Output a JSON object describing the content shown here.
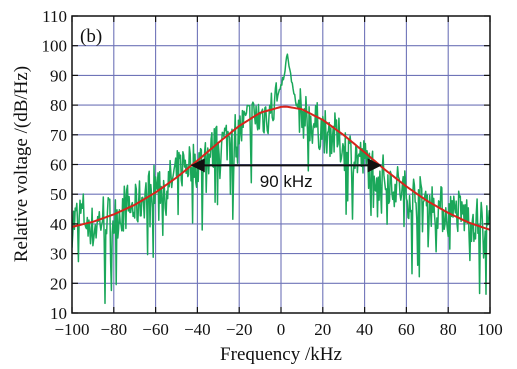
{
  "chart_data": {
    "type": "line",
    "panel_label": "(b)",
    "xlabel": "Frequency /kHz",
    "ylabel": "Relative voltage /(dB/Hz)",
    "xlim": [
      -100,
      100
    ],
    "ylim": [
      10,
      110
    ],
    "xticks": [
      "−100",
      "−80",
      "−60",
      "−40",
      "−20",
      "0",
      "20",
      "40",
      "60",
      "80",
      "100"
    ],
    "yticks": [
      "10",
      "20",
      "30",
      "40",
      "50",
      "60",
      "70",
      "80",
      "90",
      "100",
      "110"
    ],
    "grid": true,
    "colors": {
      "measured": "#1aa75a",
      "fit": "#d8231b",
      "grid": "#6f74b8",
      "arrow": "#111111"
    },
    "series": [
      {
        "style": "noisy",
        "x": [
          -100,
          -95,
          -90,
          -85,
          -80,
          -75,
          -70,
          -65,
          -60,
          -55,
          -50,
          -45,
          -40,
          -35,
          -30,
          -25,
          -20,
          -15,
          -10,
          -5,
          -2,
          0,
          2,
          3,
          4,
          6,
          8,
          10,
          15,
          20,
          25,
          30,
          35,
          40,
          45,
          50,
          55,
          60,
          65,
          70,
          75,
          80,
          85,
          90,
          95,
          100
        ],
        "y": [
          40,
          44,
          38,
          43,
          41,
          46,
          45,
          50,
          53,
          52,
          57,
          61,
          60,
          63,
          66,
          69,
          71,
          75,
          76,
          78,
          82,
          86,
          92,
          97,
          93,
          84,
          79,
          77,
          74,
          72,
          70,
          66,
          63,
          61,
          58,
          55,
          53,
          50,
          49,
          47,
          46,
          43,
          44,
          42,
          41,
          39
        ]
      },
      {
        "style": "smooth",
        "x": [
          -100,
          -90,
          -80,
          -70,
          -60,
          -50,
          -40,
          -30,
          -20,
          -10,
          0,
          2.5,
          10,
          20,
          30,
          40,
          50,
          60,
          70,
          80,
          90,
          100
        ],
        "y": [
          39,
          40.7,
          43.2,
          46.4,
          50.6,
          55.6,
          61.3,
          67.3,
          73,
          77.4,
          79.4,
          79.5,
          78.6,
          75,
          69.9,
          64.1,
          58.1,
          52.6,
          47.7,
          43.7,
          40.4,
          38
        ]
      }
    ],
    "annotations": [
      {
        "text": "90 kHz",
        "x_from": -42.5,
        "x_to": 47.5,
        "y": 59.7,
        "text_x": 2.5,
        "text_y": 52.5
      }
    ]
  }
}
